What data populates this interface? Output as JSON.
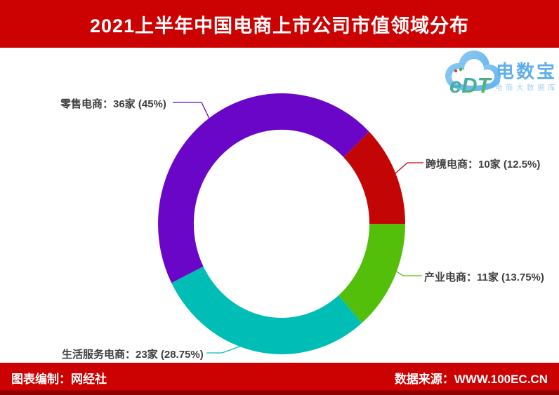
{
  "header": {
    "title": "2021上半年中国电商上市公司市值领域分布",
    "bg_color": "#CC0101",
    "text_color": "#FFFFFF"
  },
  "logo": {
    "cloud_text": "eDT",
    "brand": "电数宝",
    "brand_sub": "电商大数据库",
    "brand_color": "#5FAFE9",
    "sub_color": "#A6D2F3",
    "cloud_color": "#74BEF0"
  },
  "chart_data": {
    "type": "pie",
    "donut": true,
    "start_angle_deg": 243,
    "direction": "clockwise",
    "title": "2021上半年中国电商上市公司市值领域分布",
    "legend_position": "none",
    "categories": [
      "零售电商",
      "跨境电商",
      "产业电商",
      "生活服务电商"
    ],
    "series": [
      {
        "name": "零售电商",
        "companies": 36,
        "pct": 45,
        "label": "零售电商：36家 (45%)",
        "color": "#6A06C7"
      },
      {
        "name": "跨境电商",
        "companies": 10,
        "pct": 12.5,
        "label": "跨境电商：10家 (12.5%)",
        "color": "#C30505"
      },
      {
        "name": "产业电商",
        "companies": 11,
        "pct": 13.75,
        "label": "产业电商：11家 (13.75%)",
        "color": "#53BF0B"
      },
      {
        "name": "生活服务电商",
        "companies": 23,
        "pct": 28.75,
        "label": "生活服务电商：23家 (28.75%)",
        "color": "#00BEB5"
      }
    ],
    "hole_color": "#FFFFFF"
  },
  "footer": {
    "credit": "图表编制：网经社",
    "source": "数据来源：WWW.100EC.CN",
    "bg_color": "#CC0101",
    "accent_bottom_color": "#8F0000"
  }
}
